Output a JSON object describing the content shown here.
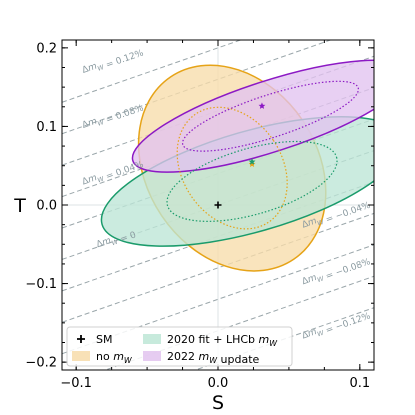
{
  "chart_data": {
    "type": "scatter",
    "xlabel": "S",
    "ylabel": "T",
    "xlim": [
      -0.11,
      0.11
    ],
    "ylim": [
      -0.21,
      0.21
    ],
    "x_ticks": [
      {
        "value": -0.1,
        "label": "−0.1"
      },
      {
        "value": 0.0,
        "label": "0.0"
      },
      {
        "value": 0.1,
        "label": "0.1"
      }
    ],
    "y_ticks": [
      {
        "value": -0.2,
        "label": "−0.2"
      },
      {
        "value": -0.1,
        "label": "−0.1"
      },
      {
        "value": 0.0,
        "label": "0.0"
      },
      {
        "value": 0.1,
        "label": "0.1"
      },
      {
        "value": 0.2,
        "label": "0.2"
      }
    ],
    "reference_lines": {
      "x": 0,
      "y": 0
    },
    "mw_lines": {
      "slope": 0.63,
      "intercepts": [
        0.2,
        0.16,
        0.12,
        0.08,
        0.04,
        0.0,
        -0.04,
        -0.08,
        -0.12,
        -0.16,
        -0.2
      ],
      "labels": [
        {
          "text": "Δm_W = 0.12%",
          "x": -0.095,
          "y": 0.168
        },
        {
          "text": "Δm_W = 0.08%",
          "x": -0.095,
          "y": 0.098
        },
        {
          "text": "Δm_W = 0.04%",
          "x": -0.095,
          "y": 0.026
        },
        {
          "text": "Δm_W = 0",
          "x": -0.085,
          "y": -0.054
        },
        {
          "text": "Δm_W = −0.04%",
          "x": 0.06,
          "y": -0.029
        },
        {
          "text": "Δm_W = −0.08%",
          "x": 0.06,
          "y": -0.101
        },
        {
          "text": "Δm_W = −0.12%",
          "x": 0.06,
          "y": -0.17
        }
      ]
    },
    "series": [
      {
        "name": "no m_W",
        "fill": "#f7dcaa",
        "stroke": "#e6a317",
        "center": [
          0.01,
          0.047
        ],
        "ellipse_outer": {
          "ax": 0.06,
          "ay": 0.14,
          "angle": 34
        },
        "ellipse_inner": {
          "ax": 0.035,
          "ay": 0.083,
          "angle": 34
        },
        "best_fit": [
          0.024,
          0.052
        ]
      },
      {
        "name": "2020 fit + LHCb m_W",
        "fill": "#bde6d6",
        "stroke": "#1a9b6b",
        "center": [
          0.024,
          0.03
        ],
        "ellipse_outer": {
          "ax": 0.11,
          "ay": 0.064,
          "angle": 16
        },
        "ellipse_inner": {
          "ax": 0.062,
          "ay": 0.042,
          "angle": 16
        },
        "best_fit": [
          0.024,
          0.055
        ]
      },
      {
        "name": "2022 m_W update",
        "fill": "#e2c3ef",
        "stroke": "#8c19c4",
        "center": [
          0.037,
          0.113
        ],
        "ellipse_outer": {
          "ax": 0.102,
          "ay": 0.045,
          "angle": 18
        },
        "ellipse_inner": {
          "ax": 0.065,
          "ay": 0.027,
          "angle": 18
        },
        "best_fit": [
          0.031,
          0.126
        ]
      }
    ],
    "sm_point": {
      "name": "SM",
      "x": 0.0,
      "y": 0.0
    },
    "legend": {
      "position": "lower-left",
      "entries": [
        {
          "label": "SM",
          "kind": "marker"
        },
        {
          "label": "2020 fit + LHCb m_W",
          "kind": "patch",
          "series": 1
        },
        {
          "label": "no m_W",
          "kind": "patch",
          "series": 0
        },
        {
          "label": "2022 m_W update",
          "kind": "patch",
          "series": 2
        }
      ]
    }
  }
}
